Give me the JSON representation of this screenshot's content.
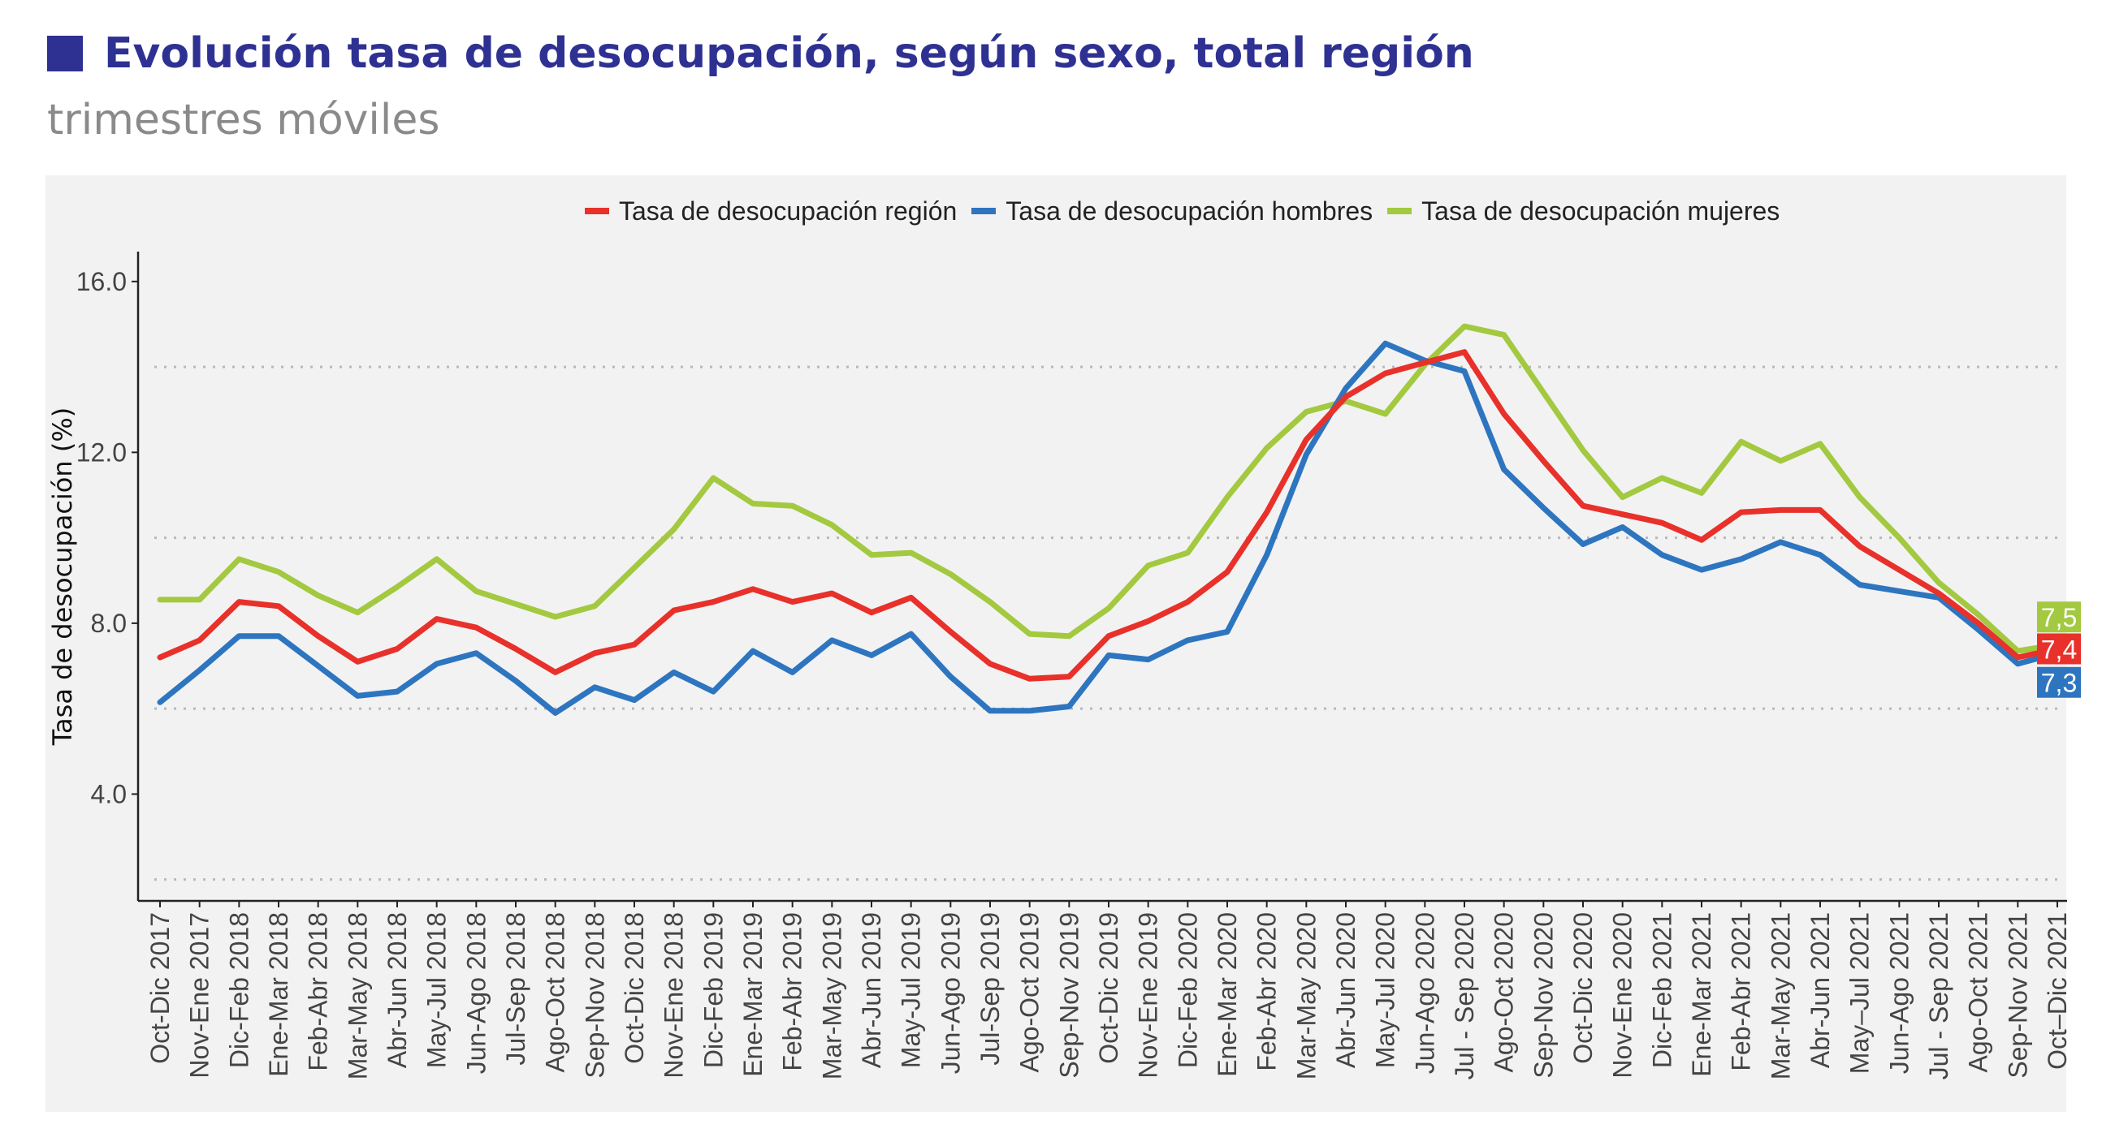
{
  "header": {
    "title": "Evolución tasa de desocupación, según sexo, total región",
    "subtitle": "trimestres móviles"
  },
  "colors": {
    "title": "#2e3192",
    "region": "#e8312a",
    "hombres": "#2e75c0",
    "mujeres": "#a3c940",
    "panel_bg": "#f2f2f2"
  },
  "chart_data": {
    "type": "line",
    "title": "",
    "xlabel": "",
    "ylabel": "Tasa de desocupación (%)",
    "ylim": [
      1.5,
      16.7
    ],
    "yticks": [
      "4.0",
      "8.0",
      "12.0",
      "16.0"
    ],
    "ytick_values": [
      4,
      8,
      12,
      16
    ],
    "grid": "horizontal dotted",
    "legend_position": "top",
    "categories": [
      "Oct-Dic 2017",
      "Nov-Ene 2017",
      "Dic-Feb 2018",
      "Ene-Mar 2018",
      "Feb-Abr 2018",
      "Mar-May 2018",
      "Abr-Jun 2018",
      "May-Jul 2018",
      "Jun-Ago 2018",
      "Jul-Sep 2018",
      "Ago-Oct 2018",
      "Sep-Nov 2018",
      "Oct-Dic 2018",
      "Nov-Ene 2018",
      "Dic-Feb 2019",
      "Ene-Mar 2019",
      "Feb-Abr 2019",
      "Mar-May 2019",
      "Abr-Jun 2019",
      "May-Jul 2019",
      "Jun-Ago 2019",
      "Jul-Sep 2019",
      "Ago-Oct 2019",
      "Sep-Nov 2019",
      "Oct-Dic 2019",
      "Nov-Ene 2019",
      "Dic-Feb 2020",
      "Ene-Mar 2020",
      "Feb-Abr 2020",
      "Mar-May 2020",
      "Abr-Jun 2020",
      "May-Jul 2020",
      "Jun-Ago 2020",
      "Jul - Sep 2020",
      "Ago-Oct 2020",
      "Sep-Nov 2020",
      "Oct-Dic 2020",
      "Nov-Ene 2020",
      "Dic-Feb 2021",
      "Ene-Mar 2021",
      "Feb-Abr 2021",
      "Mar-May 2021",
      "Abr-Jun 2021",
      "May–Jul 2021",
      "Jun-Ago 2021",
      "Jul - Sep 2021",
      "Ago-Oct 2021",
      "Sep-Nov 2021",
      "Oct–Dic 2021"
    ],
    "series": [
      {
        "name": "Tasa de desocupación región",
        "color": "#e8312a",
        "values": [
          7.2,
          7.6,
          8.5,
          8.4,
          7.7,
          7.1,
          7.4,
          8.1,
          7.9,
          7.4,
          6.85,
          7.3,
          7.5,
          8.3,
          8.5,
          8.8,
          8.5,
          8.7,
          8.25,
          8.6,
          7.8,
          7.05,
          6.7,
          6.75,
          7.7,
          8.05,
          8.5,
          9.2,
          10.6,
          12.3,
          13.3,
          13.85,
          14.1,
          14.35,
          12.9,
          11.8,
          10.75,
          10.55,
          10.35,
          9.95,
          10.6,
          10.65,
          10.65,
          9.8,
          9.25,
          8.7,
          8.0,
          7.2,
          7.4
        ],
        "end_label": "7,4"
      },
      {
        "name": "Tasa de desocupación hombres",
        "color": "#2e75c0",
        "values": [
          6.15,
          6.9,
          7.7,
          7.7,
          7.0,
          6.3,
          6.4,
          7.05,
          7.3,
          6.65,
          5.9,
          6.5,
          6.2,
          6.85,
          6.4,
          7.35,
          6.85,
          7.6,
          7.25,
          7.75,
          6.75,
          5.95,
          5.95,
          6.05,
          7.25,
          7.15,
          7.6,
          7.8,
          9.6,
          11.95,
          13.5,
          14.55,
          14.15,
          13.9,
          11.6,
          10.7,
          9.85,
          10.25,
          9.6,
          9.25,
          9.5,
          9.9,
          9.6,
          8.9,
          8.75,
          8.6,
          7.85,
          7.05,
          7.3
        ],
        "end_label": "7,3"
      },
      {
        "name": "Tasa de desocupación mujeres",
        "color": "#a3c940",
        "values": [
          8.55,
          8.55,
          9.5,
          9.2,
          8.65,
          8.25,
          8.85,
          9.5,
          8.75,
          8.45,
          8.15,
          8.4,
          9.3,
          10.2,
          11.4,
          10.8,
          10.75,
          10.3,
          9.6,
          9.65,
          9.15,
          8.5,
          7.75,
          7.7,
          8.35,
          9.35,
          9.65,
          10.95,
          12.1,
          12.95,
          13.2,
          12.9,
          14.05,
          14.95,
          14.75,
          13.4,
          12.05,
          10.95,
          11.4,
          11.05,
          12.25,
          11.8,
          12.2,
          10.95,
          10.0,
          8.95,
          8.2,
          7.35,
          7.5
        ],
        "end_label": "7,5"
      }
    ]
  }
}
